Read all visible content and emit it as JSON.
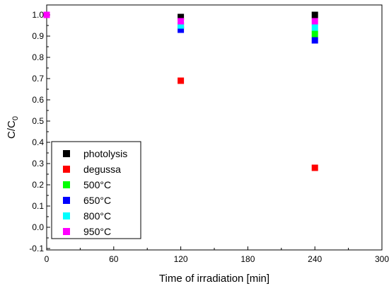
{
  "chart_data": {
    "type": "scatter",
    "title": "",
    "xlabel": "Time of irradiation [min]",
    "ylabel_main": "C/C",
    "ylabel_sub": "0",
    "xlim": [
      0,
      300
    ],
    "ylim": [
      -0.1,
      1.05
    ],
    "x_ticks": [
      0,
      60,
      120,
      180,
      240,
      300
    ],
    "x_tick_labels": [
      "0",
      "60",
      "120",
      "180",
      "240",
      "300"
    ],
    "y_ticks": [
      -0.1,
      0.0,
      0.1,
      0.2,
      0.3,
      0.4,
      0.5,
      0.6,
      0.7,
      0.8,
      0.9,
      1.0
    ],
    "y_tick_labels": [
      "-0.1",
      "0.0",
      "0.1",
      "0.2",
      "0.3",
      "0.4",
      "0.5",
      "0.6",
      "0.7",
      "0.8",
      "0.9",
      "1.0"
    ],
    "grid": false,
    "legend_position": "bottom-left",
    "marker": "square",
    "series": [
      {
        "name": "photolysis",
        "color": "#000000",
        "x": [
          0,
          120,
          240
        ],
        "y": [
          1.0,
          0.99,
          1.0
        ]
      },
      {
        "name": "degussa",
        "color": "#ff0000",
        "x": [
          0,
          120,
          240
        ],
        "y": [
          1.0,
          0.69,
          0.28
        ]
      },
      {
        "name": "500°C",
        "color": "#00ff00",
        "x": [
          0,
          120,
          240
        ],
        "y": [
          1.0,
          0.95,
          0.91
        ]
      },
      {
        "name": "650°C",
        "color": "#0000ff",
        "x": [
          0,
          120,
          240
        ],
        "y": [
          1.0,
          0.93,
          0.88
        ]
      },
      {
        "name": "800°C",
        "color": "#00ffff",
        "x": [
          0,
          120,
          240
        ],
        "y": [
          1.0,
          0.95,
          0.94
        ]
      },
      {
        "name": "950°C",
        "color": "#ff00ff",
        "x": [
          0,
          120,
          240
        ],
        "y": [
          1.0,
          0.97,
          0.97
        ]
      }
    ]
  }
}
